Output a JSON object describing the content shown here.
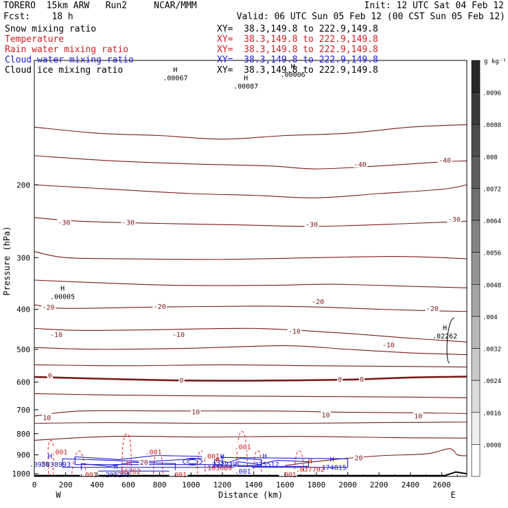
{
  "header": {
    "model": "TORERO  15km ARW   Run2     NCAR/MMM",
    "init": "Init: 12 UTC Sat 04 Feb 12",
    "fcst": "Fcst:    18 h",
    "valid": "Valid: 06 UTC Sun 05 Feb 12 (00 CST Sun 05 Feb 12)"
  },
  "fields": [
    {
      "name": "Snow mixing ratio",
      "color": "#000000",
      "xy": "XY=  38.3,149.8 to 222.9,149.8"
    },
    {
      "name": "Temperature",
      "color": "#cc2020",
      "xy": "XY=  38.3,149.8 to 222.9,149.8"
    },
    {
      "name": "Rain water mixing ratio",
      "color": "#cc2020",
      "xy": "XY=  38.3,149.8 to 222.9,149.8"
    },
    {
      "name": "Cloud water mixing ratio",
      "color": "#2020cc",
      "xy": "XY=  38.3,149.8 to 222.9,149.8"
    },
    {
      "name": "Cloud ice mixing ratio",
      "color": "#000000",
      "xy": "XY=  38.3,149.8 to 222.9,149.8"
    }
  ],
  "chart_data": {
    "type": "cross-section contour",
    "xlabel": "Distance (km)",
    "ylabel": "Pressure (hPa)",
    "x_ticks": [
      0,
      200,
      400,
      600,
      800,
      1000,
      1200,
      1400,
      1600,
      1800,
      2000,
      2200,
      2400,
      2600
    ],
    "x_range": [
      0,
      2760
    ],
    "y_ticks": [
      200,
      300,
      400,
      500,
      600,
      700,
      800,
      900,
      1000
    ],
    "y_range": [
      100,
      1015
    ],
    "y_scale": "log",
    "endpoints": {
      "left": "W",
      "right": "E"
    },
    "colorbar": {
      "unit": "g kg⁻¹",
      "levels": [
        ".0096",
        ".0088",
        ".008",
        ".0072",
        ".0064",
        ".0056",
        ".0048",
        ".004",
        ".0032",
        ".0024",
        ".0016",
        ".0008"
      ]
    },
    "temperature_contours": [
      {
        "label": "-40",
        "color": "#7a1a1a",
        "points": [
          [
            0,
            145
          ],
          [
            400,
            150
          ],
          [
            800,
            152
          ],
          [
            1200,
            155
          ],
          [
            1600,
            152
          ],
          [
            2000,
            150
          ],
          [
            2400,
            145
          ],
          [
            2760,
            143
          ]
        ]
      },
      {
        "label": "-40",
        "color": "#7a1a1a",
        "points": [
          [
            0,
            170
          ],
          [
            500,
            175
          ],
          [
            1000,
            178
          ],
          [
            1500,
            180
          ],
          [
            1800,
            183
          ],
          [
            2200,
            180
          ],
          [
            2600,
            176
          ],
          [
            2760,
            175
          ]
        ]
      },
      {
        "label": "-30",
        "color": "#7a1a1a",
        "points": [
          [
            0,
            200
          ],
          [
            500,
            205
          ],
          [
            1000,
            210
          ],
          [
            1400,
            212
          ],
          [
            1800,
            215
          ],
          [
            2200,
            210
          ],
          [
            2600,
            205
          ],
          [
            2760,
            200
          ]
        ]
      },
      {
        "label": "-30",
        "color": "#7a1a1a",
        "points": [
          [
            0,
            240
          ],
          [
            300,
            245
          ],
          [
            800,
            248
          ],
          [
            1300,
            250
          ],
          [
            1800,
            252
          ],
          [
            2400,
            248
          ],
          [
            2760,
            245
          ]
        ]
      },
      {
        "label": "-30",
        "color": "#7a1a1a",
        "points": [
          [
            0,
            290
          ],
          [
            200,
            300
          ],
          [
            600,
            302
          ],
          [
            1200,
            303
          ],
          [
            1800,
            300
          ],
          [
            2300,
            298
          ],
          [
            2600,
            300
          ],
          [
            2760,
            302
          ]
        ]
      },
      {
        "label": "-20",
        "color": "#7a1a1a",
        "points": [
          [
            0,
            340
          ],
          [
            400,
            345
          ],
          [
            900,
            350
          ],
          [
            1500,
            350
          ],
          [
            1900,
            348
          ],
          [
            2400,
            352
          ],
          [
            2760,
            355
          ]
        ]
      },
      {
        "label": "-20",
        "color": "#7a1a1a",
        "points": [
          [
            0,
            390
          ],
          [
            200,
            398
          ],
          [
            800,
            395
          ],
          [
            1400,
            393
          ],
          [
            1800,
            395
          ],
          [
            2200,
            400
          ],
          [
            2500,
            403
          ],
          [
            2760,
            405
          ]
        ]
      },
      {
        "label": "-10",
        "color": "#7a1a1a",
        "points": [
          [
            0,
            445
          ],
          [
            300,
            450
          ],
          [
            800,
            448
          ],
          [
            1400,
            445
          ],
          [
            1900,
            455
          ],
          [
            2400,
            470
          ],
          [
            2760,
            480
          ]
        ]
      },
      {
        "label": "-10",
        "color": "#7a1a1a",
        "points": [
          [
            0,
            495
          ],
          [
            400,
            500
          ],
          [
            1000,
            497
          ],
          [
            1600,
            490
          ],
          [
            2000,
            500
          ],
          [
            2400,
            510
          ],
          [
            2760,
            515
          ]
        ]
      },
      {
        "label": "0",
        "color": "#7a1a1a",
        "points": [
          [
            0,
            545
          ],
          [
            600,
            548
          ],
          [
            1200,
            545
          ],
          [
            1800,
            548
          ],
          [
            2400,
            550
          ],
          [
            2760,
            552
          ]
        ],
        "bold": false
      },
      {
        "label": "0",
        "color": "#7a1a1a",
        "points": [
          [
            0,
            583
          ],
          [
            500,
            590
          ],
          [
            1000,
            595
          ],
          [
            1500,
            595
          ],
          [
            2000,
            592
          ],
          [
            2400,
            585
          ],
          [
            2760,
            582
          ]
        ],
        "bold": true
      },
      {
        "label": "10",
        "color": "#7a1a1a",
        "points": [
          [
            0,
            640
          ],
          [
            500,
            645
          ],
          [
            1100,
            648
          ],
          [
            1700,
            650
          ],
          [
            2300,
            652
          ],
          [
            2760,
            655
          ]
        ]
      },
      {
        "label": "10",
        "color": "#7a1a1a",
        "points": [
          [
            0,
            725
          ],
          [
            300,
            705
          ],
          [
            900,
            705
          ],
          [
            1500,
            705
          ],
          [
            2000,
            710
          ],
          [
            2400,
            712
          ],
          [
            2760,
            715
          ]
        ]
      },
      {
        "label": "10",
        "color": "#7a1a1a",
        "points": [
          [
            0,
            755
          ],
          [
            500,
            752
          ],
          [
            1100,
            755
          ],
          [
            1700,
            755
          ],
          [
            2200,
            752
          ],
          [
            2760,
            750
          ]
        ]
      },
      {
        "label": "20",
        "color": "#7a1a1a",
        "points": [
          [
            0,
            830
          ],
          [
            500,
            812
          ],
          [
            1100,
            815
          ],
          [
            1700,
            812
          ],
          [
            2300,
            818
          ],
          [
            2760,
            820
          ]
        ]
      },
      {
        "label": "20",
        "color": "#7a1a1a",
        "points": [
          [
            1600,
            955
          ],
          [
            1900,
            925
          ],
          [
            2200,
            905
          ],
          [
            2500,
            895
          ],
          [
            2650,
            870
          ],
          [
            2700,
            900
          ],
          [
            2760,
            905
          ]
        ]
      }
    ],
    "contour_labels": [
      {
        "text": "-40",
        "x": 2080,
        "y": 178,
        "color": "#7a1a1a"
      },
      {
        "text": "-40",
        "x": 2620,
        "y": 174,
        "color": "#7a1a1a"
      },
      {
        "text": "-30",
        "x": 190,
        "y": 246,
        "color": "#7a1a1a"
      },
      {
        "text": "-30",
        "x": 600,
        "y": 246,
        "color": "#7a1a1a"
      },
      {
        "text": "-30",
        "x": 1770,
        "y": 249,
        "color": "#7a1a1a"
      },
      {
        "text": "-30",
        "x": 2680,
        "y": 242,
        "color": "#7a1a1a"
      },
      {
        "text": "-20",
        "x": 90,
        "y": 395,
        "color": "#7a1a1a"
      },
      {
        "text": "-20",
        "x": 800,
        "y": 393,
        "color": "#7a1a1a"
      },
      {
        "text": "-20",
        "x": 1810,
        "y": 383,
        "color": "#7a1a1a"
      },
      {
        "text": "-20",
        "x": 2540,
        "y": 398,
        "color": "#7a1a1a"
      },
      {
        "text": "-10",
        "x": 140,
        "y": 460,
        "color": "#7a1a1a"
      },
      {
        "text": "-10",
        "x": 920,
        "y": 460,
        "color": "#7a1a1a"
      },
      {
        "text": "-10",
        "x": 1660,
        "y": 451,
        "color": "#7a1a1a"
      },
      {
        "text": "-10",
        "x": 2260,
        "y": 487,
        "color": "#7a1a1a"
      },
      {
        "text": "0",
        "x": 100,
        "y": 577,
        "color": "#7a1a1a"
      },
      {
        "text": "0",
        "x": 940,
        "y": 593,
        "color": "#7a1a1a"
      },
      {
        "text": "0",
        "x": 1950,
        "y": 590,
        "color": "#7a1a1a"
      },
      {
        "text": "0",
        "x": 2090,
        "y": 590,
        "color": "#7a1a1a"
      },
      {
        "text": "10",
        "x": 1030,
        "y": 707,
        "color": "#7a1a1a"
      },
      {
        "text": "10",
        "x": 1860,
        "y": 719,
        "color": "#7a1a1a"
      },
      {
        "text": "10",
        "x": 2450,
        "y": 723,
        "color": "#7a1a1a"
      },
      {
        "text": "10",
        "x": 80,
        "y": 730,
        "color": "#7a1a1a"
      },
      {
        "text": "20",
        "x": 2070,
        "y": 913,
        "color": "#7a1a1a"
      },
      {
        "text": "20",
        "x": 70,
        "y": 945,
        "color": "#7a1a1a"
      },
      {
        "text": "20",
        "x": 700,
        "y": 936,
        "color": "#7a1a1a"
      }
    ],
    "extrema": [
      {
        "mark": "H",
        "value": ".00005",
        "x": 180,
        "y": 365,
        "color": "#000000"
      },
      {
        "mark": "H",
        "value": ".02262",
        "x": 2620,
        "y": 455,
        "color": "#000000"
      },
      {
        "mark": "H",
        "value": ".00067",
        "x": 900,
        "y": 108,
        "color": "#000000"
      },
      {
        "mark": "H",
        "value": ".00087",
        "x": 1350,
        "y": 113,
        "color": "#000000"
      },
      {
        "mark": "H",
        "value": ".00006",
        "x": 1650,
        "y": 106,
        "color": "#000000"
      },
      {
        "mark": "H",
        "value": ".095838993",
        "x": 100,
        "y": 930,
        "color": "#2020cc"
      },
      {
        "mark": "H",
        "value": ".205295",
        "x": 520,
        "y": 985,
        "color": "#2020cc"
      },
      {
        "mark": "H",
        "value": ".16762",
        "x": 600,
        "y": 965,
        "color": "#cc2020"
      },
      {
        "mark": "H",
        "value": ".103689",
        "x": 1170,
        "y": 947,
        "color": "#cc2020"
      },
      {
        "mark": "H",
        "value": ".222039",
        "x": 1200,
        "y": 930,
        "color": "#2020cc"
      },
      {
        "mark": "H",
        "value": ".375512",
        "x": 1470,
        "y": 930,
        "color": "#2020cc"
      },
      {
        "mark": "H",
        "value": ".174815",
        "x": 1900,
        "y": 945,
        "color": "#2020cc"
      },
      {
        "mark": "H",
        "value": ".037702",
        "x": 1760,
        "y": 955,
        "color": "#cc2020"
      }
    ],
    "value_labels": [
      {
        "text": ".001",
        "x": 160,
        "y": 885,
        "color": "#cc2020"
      },
      {
        "text": ".001",
        "x": 760,
        "y": 885,
        "color": "#cc2020"
      },
      {
        "text": ".001",
        "x": 1130,
        "y": 905,
        "color": "#cc2020"
      },
      {
        "text": ".001",
        "x": 1330,
        "y": 860,
        "color": "#cc2020"
      },
      {
        "text": ".001",
        "x": 1330,
        "y": 985,
        "color": "#2020cc"
      },
      {
        "text": ".001",
        "x": 350,
        "y": 1003,
        "color": "#cc2020"
      },
      {
        "text": ".001",
        "x": 920,
        "y": 1003,
        "color": "#cc2020"
      },
      {
        "text": ".001",
        "x": 1620,
        "y": 1003,
        "color": "#cc2020"
      }
    ]
  }
}
